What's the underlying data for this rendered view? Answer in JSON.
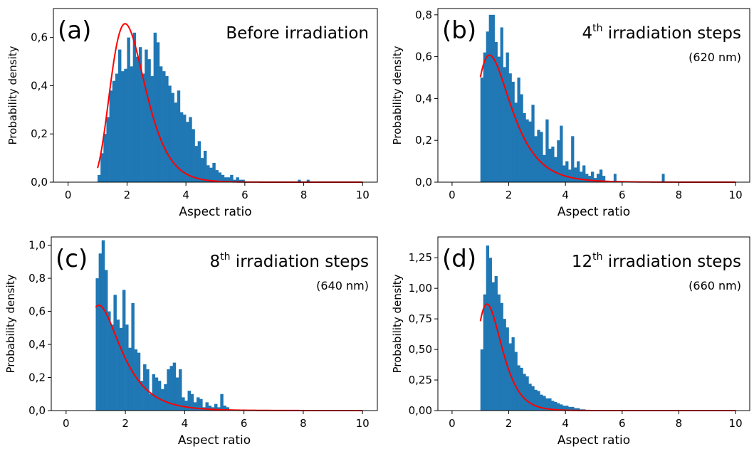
{
  "chart_data": [
    {
      "type": "bar",
      "panel_label": "(a)",
      "title": "Before irradiation",
      "title_sup": "",
      "title_rest": "",
      "subtitle": "",
      "xlabel": "Aspect ratio",
      "ylabel": "Probability density",
      "xlim": [
        -0.5,
        10.5
      ],
      "ylim": [
        0,
        0.72
      ],
      "xticks": [
        0,
        2,
        4,
        6,
        8,
        10
      ],
      "xtick_labels": [
        "0",
        "2",
        "4",
        "6",
        "8",
        "10"
      ],
      "yticks": [
        0,
        0.2,
        0.4,
        0.6
      ],
      "ytick_labels": [
        "0,0",
        "0,2",
        "0,4",
        "0,6"
      ],
      "bar_color": "#1f77b4",
      "fit_color": "#ff0000",
      "bin_start": 1.0,
      "bin_width": 0.1,
      "values": [
        0.03,
        0.12,
        0.2,
        0.27,
        0.38,
        0.42,
        0.45,
        0.55,
        0.46,
        0.47,
        0.6,
        0.48,
        0.62,
        0.52,
        0.56,
        0.45,
        0.55,
        0.51,
        0.44,
        0.62,
        0.58,
        0.48,
        0.46,
        0.44,
        0.4,
        0.37,
        0.33,
        0.38,
        0.29,
        0.28,
        0.25,
        0.27,
        0.22,
        0.15,
        0.17,
        0.1,
        0.13,
        0.07,
        0.06,
        0.08,
        0.05,
        0.04,
        0.03,
        0.02,
        0.02,
        0.03,
        0.01,
        0.02,
        0.01,
        0.0,
        0.0
      ],
      "outliers": [
        {
          "x": 4.9,
          "y": 0.01
        },
        {
          "x": 5.2,
          "y": 0.01
        },
        {
          "x": 5.9,
          "y": 0.01
        },
        {
          "x": 7.8,
          "y": 0.01
        },
        {
          "x": 8.1,
          "y": 0.01
        }
      ],
      "fit": {
        "mu": 0.75,
        "sigma": 0.3,
        "shift": 0.0,
        "scale": 1.0
      }
    },
    {
      "type": "bar",
      "panel_label": "(b)",
      "title": "4",
      "title_sup": "th",
      "title_rest": " irradiation steps",
      "subtitle": "(620 nm)",
      "xlabel": "Aspect ratio",
      "ylabel": "Probability density",
      "xlim": [
        -0.5,
        10.5
      ],
      "ylim": [
        0,
        0.83
      ],
      "xticks": [
        0,
        2,
        4,
        6,
        8,
        10
      ],
      "xtick_labels": [
        "0",
        "2",
        "4",
        "6",
        "8",
        "10"
      ],
      "yticks": [
        0,
        0.2,
        0.4,
        0.6,
        0.8
      ],
      "ytick_labels": [
        "0,0",
        "0,2",
        "0,4",
        "0,6",
        "0,8"
      ],
      "bar_color": "#1f77b4",
      "fit_color": "#ff0000",
      "bin_start": 1.0,
      "bin_width": 0.1,
      "values": [
        0.5,
        0.62,
        0.72,
        0.8,
        0.8,
        0.67,
        0.6,
        0.74,
        0.55,
        0.62,
        0.52,
        0.48,
        0.38,
        0.5,
        0.42,
        0.33,
        0.3,
        0.29,
        0.37,
        0.22,
        0.25,
        0.24,
        0.13,
        0.3,
        0.16,
        0.17,
        0.12,
        0.2,
        0.27,
        0.08,
        0.1,
        0.06,
        0.22,
        0.07,
        0.1,
        0.05,
        0.08,
        0.04,
        0.03,
        0.05,
        0.02,
        0.04,
        0.06,
        0.03,
        0.0
      ],
      "outliers": [
        {
          "x": 5.7,
          "y": 0.04
        },
        {
          "x": 7.4,
          "y": 0.04
        }
      ],
      "fit": {
        "mu": 0.48,
        "sigma": 0.45,
        "shift": 0.0,
        "scale": 1.0
      }
    },
    {
      "type": "bar",
      "panel_label": "(c)",
      "title": "8",
      "title_sup": "th",
      "title_rest": " irradiation steps",
      "subtitle": "(640 nm)",
      "xlabel": "Aspect ratio",
      "ylabel": "Probability density",
      "xlim": [
        -0.5,
        10.5
      ],
      "ylim": [
        0,
        1.05
      ],
      "xticks": [
        0,
        2,
        4,
        6,
        8,
        10
      ],
      "xtick_labels": [
        "0",
        "2",
        "4",
        "6",
        "8",
        "10"
      ],
      "yticks": [
        0,
        0.2,
        0.4,
        0.6,
        0.8,
        1.0
      ],
      "ytick_labels": [
        "0,0",
        "0,2",
        "0,4",
        "0,6",
        "0,8",
        "1,0"
      ],
      "bar_color": "#1f77b4",
      "fit_color": "#ff0000",
      "bin_start": 1.0,
      "bin_width": 0.1,
      "values": [
        0.8,
        0.95,
        1.03,
        0.85,
        0.6,
        0.52,
        0.7,
        0.55,
        0.5,
        0.73,
        0.52,
        0.38,
        0.65,
        0.37,
        0.35,
        0.18,
        0.28,
        0.25,
        0.1,
        0.22,
        0.2,
        0.18,
        0.13,
        0.16,
        0.25,
        0.27,
        0.29,
        0.2,
        0.25,
        0.08,
        0.06,
        0.12,
        0.1,
        0.05,
        0.08,
        0.07,
        0.02,
        0.05,
        0.03,
        0.02,
        0.04,
        0.02,
        0.1,
        0.03,
        0.02,
        0.0
      ],
      "outliers": [],
      "fit": {
        "mu": 0.35,
        "sigma": 0.5,
        "shift": 0.0,
        "scale": 1.0
      }
    },
    {
      "type": "bar",
      "panel_label": "(d)",
      "title": "12",
      "title_sup": "th",
      "title_rest": " irradiation steps",
      "subtitle": "(660 nm)",
      "xlabel": "Aspect ratio",
      "ylabel": "Probability density",
      "xlim": [
        -0.5,
        10.5
      ],
      "ylim": [
        0,
        1.42
      ],
      "xticks": [
        0,
        2,
        4,
        6,
        8,
        10
      ],
      "xtick_labels": [
        "0",
        "2",
        "4",
        "6",
        "8",
        "10"
      ],
      "yticks": [
        0,
        0.25,
        0.5,
        0.75,
        1.0,
        1.25
      ],
      "ytick_labels": [
        "0,00",
        "0,25",
        "0,50",
        "0,75",
        "1,00",
        "1,25"
      ],
      "bar_color": "#1f77b4",
      "fit_color": "#ff0000",
      "bin_start": 1.0,
      "bin_width": 0.1,
      "values": [
        0.5,
        0.95,
        1.35,
        1.25,
        1.05,
        1.1,
        0.95,
        0.88,
        0.75,
        0.68,
        0.55,
        0.6,
        0.48,
        0.37,
        0.35,
        0.3,
        0.28,
        0.22,
        0.2,
        0.17,
        0.16,
        0.13,
        0.12,
        0.1,
        0.1,
        0.08,
        0.07,
        0.06,
        0.05,
        0.04,
        0.04,
        0.03,
        0.03,
        0.02,
        0.02,
        0.01,
        0.01,
        0.0
      ],
      "outliers": [],
      "fit": {
        "mu": 0.33,
        "sigma": 0.35,
        "shift": 0.0,
        "scale": 1.0
      }
    }
  ]
}
